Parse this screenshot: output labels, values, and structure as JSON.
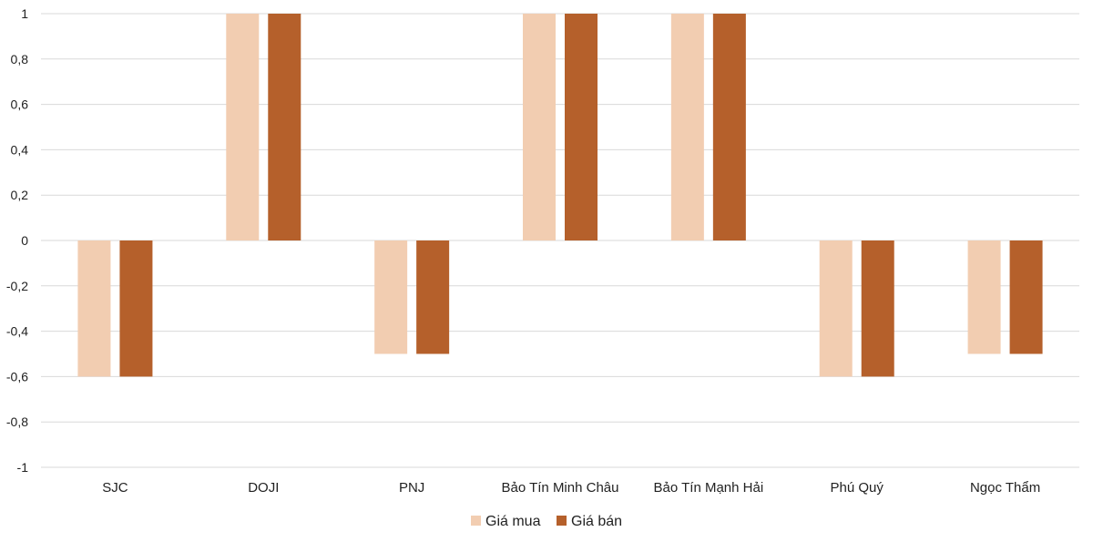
{
  "chart_data": {
    "type": "bar",
    "categories": [
      "SJC",
      "DOJI",
      "PNJ",
      "Bảo Tín Minh Châu",
      "Bảo Tín Mạnh Hải",
      "Phú Quý",
      "Ngọc Thẩm"
    ],
    "series": [
      {
        "name": "Giá mua",
        "color": "#f2cdb1",
        "values": [
          -0.6,
          1,
          -0.5,
          1,
          1,
          -0.6,
          -0.5
        ]
      },
      {
        "name": "Giá bán",
        "color": "#b5602b",
        "values": [
          -0.6,
          1,
          -0.5,
          1,
          1,
          -0.6,
          -0.5
        ]
      }
    ],
    "ylim": [
      -1,
      1
    ],
    "yticks": [
      "1",
      "0,8",
      "0,6",
      "0,4",
      "0,2",
      "0",
      "-0,2",
      "-0,4",
      "-0,6",
      "-0,8",
      "-1"
    ],
    "grid": true,
    "legend_position": "bottom"
  }
}
